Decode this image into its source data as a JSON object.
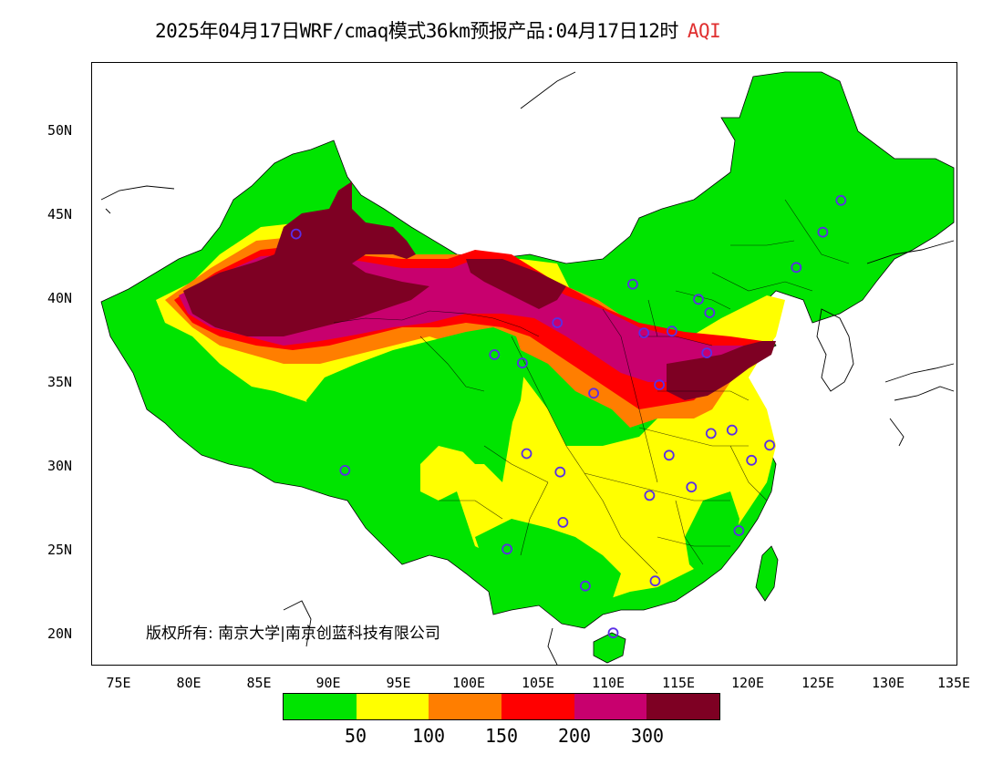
{
  "title": {
    "main": "2025年04月17日WRF/cmaq模式36km预报产品:04月17日12时",
    "variable": "AQI",
    "variable_color": "#e03030"
  },
  "axes": {
    "lat_labels": [
      "50N",
      "45N",
      "40N",
      "35N",
      "30N",
      "25N",
      "20N"
    ],
    "lon_labels": [
      "75E",
      "80E",
      "85E",
      "90E",
      "95E",
      "100E",
      "105E",
      "110E",
      "115E",
      "120E",
      "125E",
      "130E",
      "135E"
    ]
  },
  "legend": {
    "colors": [
      "#00e400",
      "#ffff00",
      "#ff7e00",
      "#ff0000",
      "#c8006e",
      "#7e0023"
    ],
    "ticks": [
      "50",
      "100",
      "150",
      "200",
      "300"
    ]
  },
  "copyright": "版权所有: 南京大学|南京创蓝科技有限公司",
  "map": {
    "background": "#ffffff",
    "stations": [
      {
        "lon": 87.6,
        "lat": 43.8
      },
      {
        "lon": 91.1,
        "lat": 29.7
      },
      {
        "lon": 101.8,
        "lat": 36.6
      },
      {
        "lon": 103.8,
        "lat": 36.1
      },
      {
        "lon": 106.3,
        "lat": 38.5
      },
      {
        "lon": 108.9,
        "lat": 34.3
      },
      {
        "lon": 111.7,
        "lat": 40.8
      },
      {
        "lon": 112.5,
        "lat": 37.9
      },
      {
        "lon": 114.5,
        "lat": 38.0
      },
      {
        "lon": 116.4,
        "lat": 39.9
      },
      {
        "lon": 117.2,
        "lat": 39.1
      },
      {
        "lon": 117.0,
        "lat": 36.7
      },
      {
        "lon": 113.6,
        "lat": 34.8
      },
      {
        "lon": 117.3,
        "lat": 31.9
      },
      {
        "lon": 118.8,
        "lat": 32.1
      },
      {
        "lon": 121.5,
        "lat": 31.2
      },
      {
        "lon": 120.2,
        "lat": 30.3
      },
      {
        "lon": 114.3,
        "lat": 30.6
      },
      {
        "lon": 112.9,
        "lat": 28.2
      },
      {
        "lon": 115.9,
        "lat": 28.7
      },
      {
        "lon": 119.3,
        "lat": 26.1
      },
      {
        "lon": 113.3,
        "lat": 23.1
      },
      {
        "lon": 108.3,
        "lat": 22.8
      },
      {
        "lon": 110.3,
        "lat": 20.0
      },
      {
        "lon": 102.7,
        "lat": 25.0
      },
      {
        "lon": 106.7,
        "lat": 26.6
      },
      {
        "lon": 106.5,
        "lat": 29.6
      },
      {
        "lon": 104.1,
        "lat": 30.7
      },
      {
        "lon": 123.4,
        "lat": 41.8
      },
      {
        "lon": 125.3,
        "lat": 43.9
      },
      {
        "lon": 126.6,
        "lat": 45.8
      }
    ]
  }
}
